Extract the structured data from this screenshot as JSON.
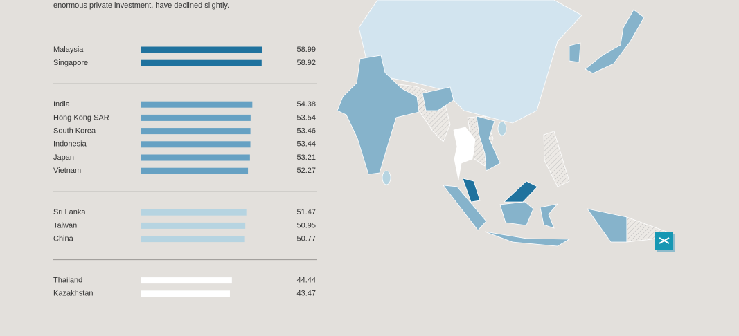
{
  "intro": "enormous private investment, have declined slightly.",
  "chart_data": {
    "type": "bar",
    "xlim": [
      0,
      60
    ],
    "groups": [
      {
        "color": "#1f729e",
        "categories": [
          "Malaysia",
          "Singapore"
        ],
        "values": [
          58.99,
          58.92
        ]
      },
      {
        "color": "#66a1c3",
        "categories": [
          "India",
          "Hong Kong SAR",
          "South Korea",
          "Indonesia",
          "Japan",
          "Vietnam"
        ],
        "values": [
          54.38,
          53.54,
          53.46,
          53.44,
          53.21,
          52.27
        ]
      },
      {
        "color": "#b6d4e1",
        "categories": [
          "Sri Lanka",
          "Taiwan",
          "China"
        ],
        "values": [
          51.47,
          50.95,
          50.77
        ]
      },
      {
        "color": "#ffffff",
        "categories": [
          "Thailand",
          "Kazakhstan"
        ],
        "values": [
          44.44,
          43.47
        ]
      }
    ]
  }
}
